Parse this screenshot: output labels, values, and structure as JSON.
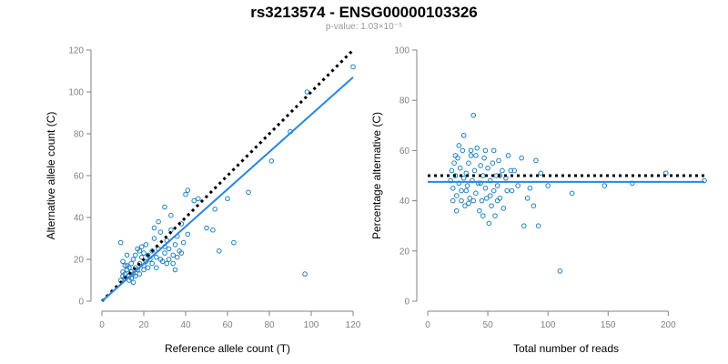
{
  "header": {
    "title": "rs3213574 - ENSG00000103326",
    "subtitle": "p-value: 1.03×10⁻⁵"
  },
  "colors": {
    "points": "#1f7fc0",
    "fit_line": "#2a86e0",
    "reference_line": "#000000",
    "axis": "#808080"
  },
  "chart_data": [
    {
      "type": "scatter",
      "xlabel": "Reference allele count (T)",
      "ylabel": "Alternative allele count (C)",
      "xlim": [
        0,
        120
      ],
      "ylim": [
        0,
        120
      ],
      "xticks": [
        0,
        20,
        40,
        60,
        80,
        100,
        120
      ],
      "yticks": [
        0,
        20,
        40,
        60,
        80,
        100,
        120
      ],
      "fit_line": {
        "style": "solid",
        "x": [
          0,
          120
        ],
        "y": [
          0,
          107
        ]
      },
      "reference_line": {
        "style": "dotted",
        "x": [
          0,
          120
        ],
        "y": [
          0,
          120
        ]
      },
      "points": [
        [
          9,
          10
        ],
        [
          10,
          12
        ],
        [
          10,
          14
        ],
        [
          11,
          11
        ],
        [
          11,
          13
        ],
        [
          12,
          15
        ],
        [
          12,
          17
        ],
        [
          13,
          12
        ],
        [
          13,
          16
        ],
        [
          14,
          14
        ],
        [
          14,
          18
        ],
        [
          15,
          13
        ],
        [
          15,
          20
        ],
        [
          16,
          16
        ],
        [
          16,
          22
        ],
        [
          17,
          15
        ],
        [
          17,
          25
        ],
        [
          18,
          18
        ],
        [
          18,
          24
        ],
        [
          19,
          21
        ],
        [
          19,
          26
        ],
        [
          20,
          17
        ],
        [
          20,
          23
        ],
        [
          21,
          19
        ],
        [
          21,
          27
        ],
        [
          22,
          22
        ],
        [
          23,
          20
        ],
        [
          24,
          24
        ],
        [
          25,
          30
        ],
        [
          26,
          21
        ],
        [
          27,
          25
        ],
        [
          28,
          33
        ],
        [
          29,
          19
        ],
        [
          30,
          26
        ],
        [
          31,
          29
        ],
        [
          32,
          20
        ],
        [
          33,
          34
        ],
        [
          34,
          22
        ],
        [
          35,
          27
        ],
        [
          36,
          31
        ],
        [
          37,
          24
        ],
        [
          38,
          37
        ],
        [
          39,
          28
        ],
        [
          40,
          51
        ],
        [
          41,
          53
        ],
        [
          41,
          32
        ],
        [
          44,
          48
        ],
        [
          46,
          49
        ],
        [
          50,
          35
        ],
        [
          53,
          34
        ],
        [
          54,
          44
        ],
        [
          56,
          24
        ],
        [
          60,
          49
        ],
        [
          63,
          28
        ],
        [
          70,
          52
        ],
        [
          81,
          67
        ],
        [
          90,
          81
        ],
        [
          97,
          13
        ],
        [
          98,
          100
        ],
        [
          120,
          112
        ],
        [
          9,
          28
        ],
        [
          10,
          19
        ],
        [
          11,
          17
        ],
        [
          12,
          22
        ],
        [
          13,
          10
        ],
        [
          14,
          11
        ],
        [
          15,
          9
        ],
        [
          16,
          12
        ],
        [
          18,
          13
        ],
        [
          20,
          15
        ],
        [
          22,
          16
        ],
        [
          24,
          18
        ],
        [
          26,
          16
        ],
        [
          28,
          20
        ],
        [
          30,
          23
        ],
        [
          32,
          25
        ],
        [
          34,
          18
        ],
        [
          36,
          21
        ],
        [
          38,
          23
        ],
        [
          33,
          41
        ],
        [
          30,
          45
        ],
        [
          27,
          38
        ],
        [
          25,
          35
        ],
        [
          31,
          18
        ],
        [
          35,
          15
        ]
      ]
    },
    {
      "type": "scatter",
      "xlabel": "Total number of reads",
      "ylabel": "Percentage alternative (C)",
      "xlim": [
        0,
        230
      ],
      "ylim": [
        0,
        100
      ],
      "xticks": [
        0,
        50,
        100,
        150,
        200
      ],
      "yticks": [
        0,
        20,
        40,
        60,
        80,
        100
      ],
      "fit_line": {
        "style": "solid",
        "x": [
          0,
          230
        ],
        "y": [
          47.5,
          47.5
        ]
      },
      "reference_line": {
        "style": "dotted",
        "x": [
          0,
          230
        ],
        "y": [
          50,
          50
        ]
      },
      "points": [
        [
          19,
          48
        ],
        [
          20,
          52
        ],
        [
          21,
          45
        ],
        [
          22,
          55
        ],
        [
          23,
          50
        ],
        [
          24,
          42
        ],
        [
          25,
          57
        ],
        [
          26,
          47
        ],
        [
          27,
          53
        ],
        [
          28,
          44
        ],
        [
          29,
          60
        ],
        [
          30,
          49
        ],
        [
          31,
          38
        ],
        [
          32,
          51
        ],
        [
          33,
          46
        ],
        [
          34,
          55
        ],
        [
          35,
          41
        ],
        [
          36,
          58
        ],
        [
          37,
          48
        ],
        [
          38,
          74
        ],
        [
          39,
          52
        ],
        [
          40,
          43
        ],
        [
          41,
          61
        ],
        [
          42,
          47
        ],
        [
          43,
          36
        ],
        [
          44,
          54
        ],
        [
          45,
          40
        ],
        [
          46,
          50
        ],
        [
          47,
          57
        ],
        [
          48,
          45
        ],
        [
          49,
          41
        ],
        [
          50,
          53
        ],
        [
          51,
          31
        ],
        [
          52,
          48
        ],
        [
          53,
          38
        ],
        [
          54,
          55
        ],
        [
          55,
          44
        ],
        [
          56,
          34
        ],
        [
          57,
          50
        ],
        [
          58,
          46
        ],
        [
          59,
          56
        ],
        [
          60,
          41
        ],
        [
          62,
          52
        ],
        [
          63,
          37
        ],
        [
          65,
          49
        ],
        [
          67,
          58
        ],
        [
          70,
          44
        ],
        [
          72,
          52
        ],
        [
          75,
          46
        ],
        [
          78,
          57
        ],
        [
          80,
          30
        ],
        [
          83,
          41
        ],
        [
          85,
          45
        ],
        [
          88,
          38
        ],
        [
          90,
          56
        ],
        [
          92,
          30
        ],
        [
          94,
          51
        ],
        [
          100,
          46
        ],
        [
          110,
          12
        ],
        [
          120,
          43
        ],
        [
          147,
          46
        ],
        [
          170,
          47
        ],
        [
          198,
          51
        ],
        [
          230,
          48
        ],
        [
          21,
          40
        ],
        [
          23,
          58
        ],
        [
          24,
          36
        ],
        [
          26,
          62
        ],
        [
          28,
          40
        ],
        [
          30,
          66
        ],
        [
          32,
          44
        ],
        [
          34,
          39
        ],
        [
          36,
          60
        ],
        [
          38,
          40
        ],
        [
          40,
          58
        ],
        [
          44,
          47
        ],
        [
          46,
          34
        ],
        [
          48,
          60
        ],
        [
          52,
          42
        ],
        [
          55,
          60
        ],
        [
          58,
          40
        ],
        [
          60,
          50
        ],
        [
          66,
          44
        ],
        [
          69,
          52
        ]
      ]
    }
  ]
}
